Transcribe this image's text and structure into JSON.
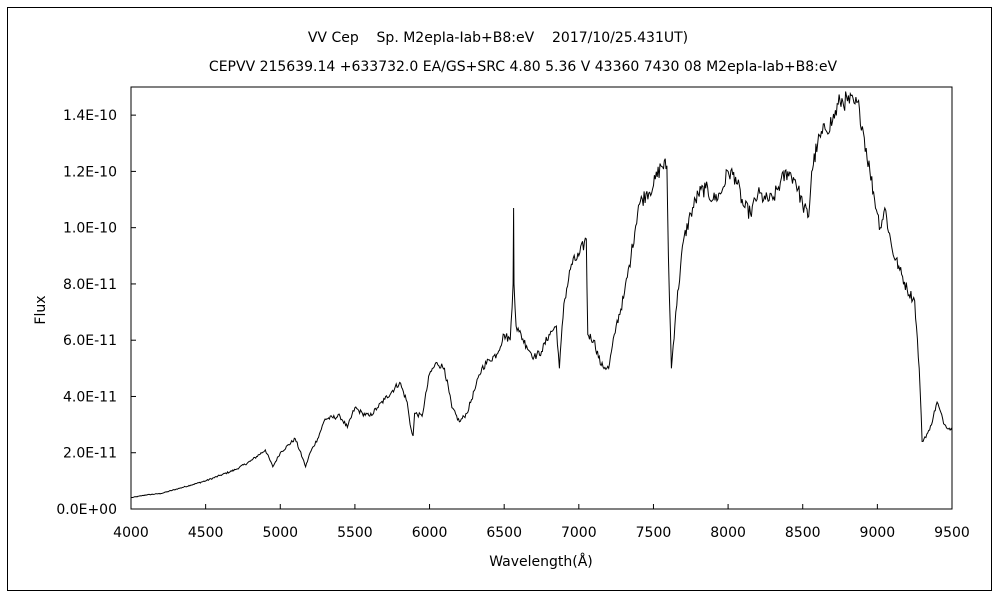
{
  "chart_data": {
    "type": "line",
    "title": "VV Cep    Sp. M2epIa-Iab+B8:eV    2017/10/25.431UT)",
    "subtitle": "CEPVV 215639.14 +633732.0 EA/GS+SRC 4.80 5.36 V 43360 7430 08 M2epIa-Iab+B8:eV",
    "xlabel": "Wavelength(Å)",
    "ylabel": "Flux",
    "xlim": [
      4000,
      9500
    ],
    "ylim": [
      0,
      1.5e-10
    ],
    "x_ticks": [
      4000,
      4500,
      5000,
      5500,
      6000,
      6500,
      7000,
      7500,
      8000,
      8500,
      9000,
      9500
    ],
    "x_tick_labels": [
      "4000",
      "4500",
      "5000",
      "5500",
      "6000",
      "6500",
      "7000",
      "7500",
      "8000",
      "8500",
      "9000",
      "9500"
    ],
    "y_ticks": [
      0,
      2e-11,
      4e-11,
      6e-11,
      8e-11,
      1e-10,
      1.2e-10,
      1.4e-10
    ],
    "y_tick_labels": [
      "0.0E+00",
      "2.0E-11",
      "4.0E-11",
      "6.0E-11",
      "8.0E-11",
      "1.0E-10",
      "1.2E-10",
      "1.4E-10"
    ],
    "grid": false,
    "legend": "none",
    "line_color": "#000000",
    "series": [
      {
        "x": [
          4000,
          4100,
          4200,
          4300,
          4400,
          4500,
          4600,
          4700,
          4800,
          4900,
          4950,
          5000,
          5100,
          5150,
          5170,
          5200,
          5250,
          5300,
          5400,
          5450,
          5500,
          5550,
          5600,
          5650,
          5700,
          5800,
          5850,
          5870,
          5890,
          5900,
          5950,
          6000,
          6050,
          6100,
          6150,
          6200,
          6250,
          6300,
          6350,
          6400,
          6450,
          6500,
          6540,
          6560,
          6563,
          6566,
          6580,
          6600,
          6650,
          6700,
          6750,
          6800,
          6850,
          6870,
          6900,
          6950,
          7000,
          7050,
          7060,
          7100,
          7150,
          7200,
          7250,
          7300,
          7350,
          7400,
          7450,
          7500,
          7550,
          7590,
          7600,
          7620,
          7650,
          7700,
          7750,
          7800,
          7850,
          7900,
          7950,
          8000,
          8050,
          8100,
          8150,
          8200,
          8250,
          8300,
          8350,
          8400,
          8450,
          8500,
          8540,
          8560,
          8600,
          8650,
          8700,
          8750,
          8800,
          8850,
          8880,
          8900,
          8950,
          9000,
          9020,
          9050,
          9100,
          9150,
          9200,
          9250,
          9280,
          9300,
          9350,
          9400,
          9450,
          9500
        ],
        "y": [
          4e-12,
          5e-12,
          5.5e-12,
          7e-12,
          8.5e-12,
          1e-11,
          1.2e-11,
          1.4e-11,
          1.7e-11,
          2.1e-11,
          1.5e-11,
          2e-11,
          2.5e-11,
          1.8e-11,
          1.5e-11,
          2e-11,
          2.5e-11,
          3.2e-11,
          3.3e-11,
          2.9e-11,
          3.6e-11,
          3.4e-11,
          3.3e-11,
          3.6e-11,
          3.9e-11,
          4.5e-11,
          3.8e-11,
          3e-11,
          2.6e-11,
          3.4e-11,
          3.3e-11,
          4.8e-11,
          5.2e-11,
          5e-11,
          3.6e-11,
          3.1e-11,
          3.4e-11,
          4.2e-11,
          5e-11,
          5.3e-11,
          5.5e-11,
          6.2e-11,
          6e-11,
          8e-11,
          1.07e-10,
          8e-11,
          6.5e-11,
          6.3e-11,
          5.8e-11,
          5.4e-11,
          5.6e-11,
          6.2e-11,
          6.5e-11,
          5e-11,
          7.3e-11,
          8.7e-11,
          9e-11,
          9.6e-11,
          6.2e-11,
          6e-11,
          5.1e-11,
          5e-11,
          6.5e-11,
          7.5e-11,
          9e-11,
          1.08e-10,
          1.12e-10,
          1.15e-10,
          1.22e-10,
          1.22e-10,
          9e-11,
          5e-11,
          7e-11,
          9.5e-11,
          1.05e-10,
          1.12e-10,
          1.14e-10,
          1.1e-10,
          1.12e-10,
          1.2e-10,
          1.18e-10,
          1.08e-10,
          1.05e-10,
          1.12e-10,
          1.1e-10,
          1.1e-10,
          1.16e-10,
          1.2e-10,
          1.17e-10,
          1.08e-10,
          1.04e-10,
          1.2e-10,
          1.3e-10,
          1.35e-10,
          1.38e-10,
          1.45e-10,
          1.45e-10,
          1.44e-10,
          1.42e-10,
          1.36e-10,
          1.2e-10,
          1.05e-10,
          1e-10,
          1.07e-10,
          9.2e-11,
          8.5e-11,
          7.8e-11,
          7.4e-11,
          5e-11,
          2.4e-11,
          2.8e-11,
          3.8e-11,
          3e-11,
          2.8e-11
        ]
      }
    ]
  }
}
